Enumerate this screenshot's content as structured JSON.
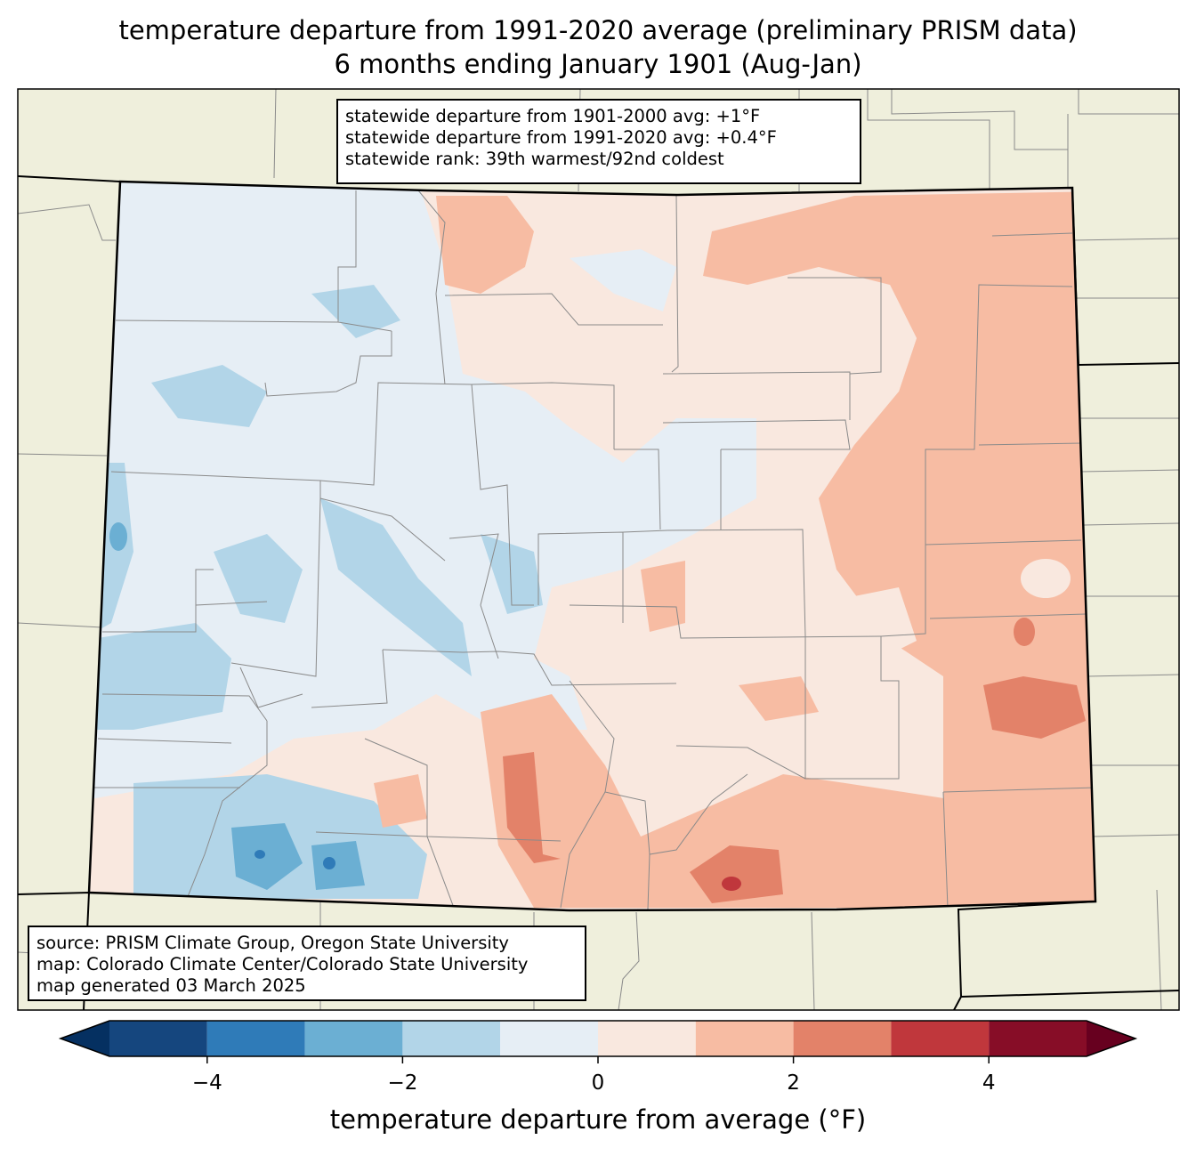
{
  "title": {
    "line1": "temperature departure from 1991-2020 average (preliminary PRISM data)",
    "line2": "6 months ending January 1901 (Aug-Jan)"
  },
  "stats": {
    "line1": "statewide departure from 1901-2000 avg: +1°F",
    "line2": "statewide departure from 1991-2020 avg: +0.4°F",
    "line3": "statewide rank: 39th warmest/92nd coldest"
  },
  "source": {
    "line1": "source: PRISM Climate Group, Oregon State University",
    "line2": "map: Colorado Climate Center/Colorado State University",
    "line3": "map generated 03 March 2025"
  },
  "colorbar": {
    "label": "temperature departure from average (°F)",
    "ticks": [
      "−4",
      "−2",
      "0",
      "2",
      "4"
    ],
    "tick_values": [
      -4,
      -2,
      0,
      2,
      4
    ],
    "range": [
      -5,
      5
    ],
    "bins": [
      {
        "from": -5,
        "to": -4,
        "color": "#15467e"
      },
      {
        "from": -4,
        "to": -3,
        "color": "#2f7bb8"
      },
      {
        "from": -3,
        "to": -2,
        "color": "#6bafd3"
      },
      {
        "from": -2,
        "to": -1,
        "color": "#b2d5e8"
      },
      {
        "from": -1,
        "to": 0,
        "color": "#e6eef5"
      },
      {
        "from": 0,
        "to": 1,
        "color": "#f9e8df"
      },
      {
        "from": 1,
        "to": 2,
        "color": "#f7bca3"
      },
      {
        "from": 2,
        "to": 3,
        "color": "#e38269"
      },
      {
        "from": 3,
        "to": 4,
        "color": "#c0373c"
      },
      {
        "from": 4,
        "to": 5,
        "color": "#870d27"
      }
    ],
    "under_color": "#053061",
    "over_color": "#67001f"
  },
  "map_colors": {
    "land": "#efefdc",
    "county_lines": "#8a8a8a",
    "state_border": "#000000"
  }
}
